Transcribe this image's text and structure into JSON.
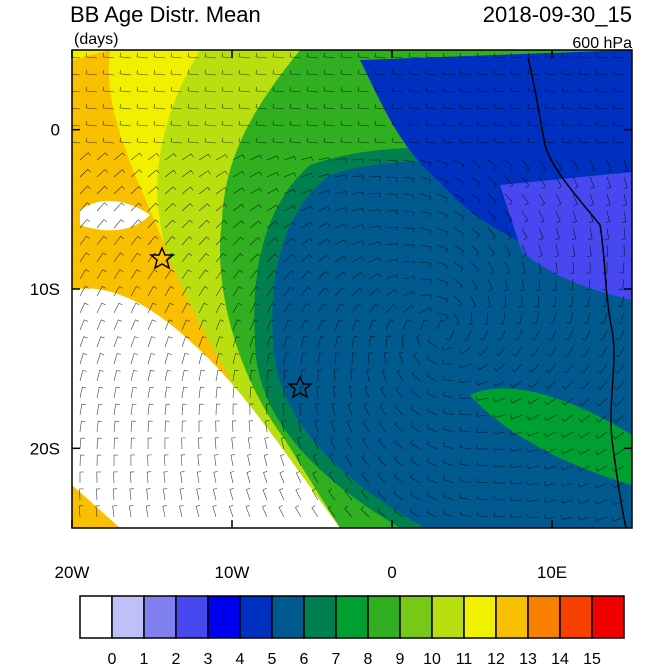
{
  "map": {
    "title": "BB Age Distr. Mean",
    "units": "(days)",
    "time": "2018-09-30_15",
    "level": "600 hPa",
    "lon_ticks": [
      {
        "value": -20,
        "label": "20W"
      },
      {
        "value": -10,
        "label": "10W"
      },
      {
        "value": 0,
        "label": "0"
      },
      {
        "value": 10,
        "label": "10E"
      }
    ],
    "lat_ticks": [
      {
        "value": 0,
        "label": "0"
      },
      {
        "value": -10,
        "label": "10S"
      },
      {
        "value": -20,
        "label": "20S"
      }
    ],
    "lonlim": [
      -20,
      15
    ],
    "latlim": [
      -25,
      5
    ],
    "colorbar": {
      "colors": [
        "#ffffff",
        "#c0c0f8",
        "#8080f0",
        "#4848f0",
        "#0000f0",
        "#0030c0",
        "#005a90",
        "#008050",
        "#00a030",
        "#30b020",
        "#78c818",
        "#b8e010",
        "#f0f000",
        "#f8c000",
        "#f88000",
        "#f84000",
        "#f00000"
      ],
      "labels": [
        0,
        1,
        2,
        3,
        4,
        5,
        6,
        7,
        8,
        9,
        10,
        11,
        12,
        13,
        14,
        15
      ]
    }
  }
}
